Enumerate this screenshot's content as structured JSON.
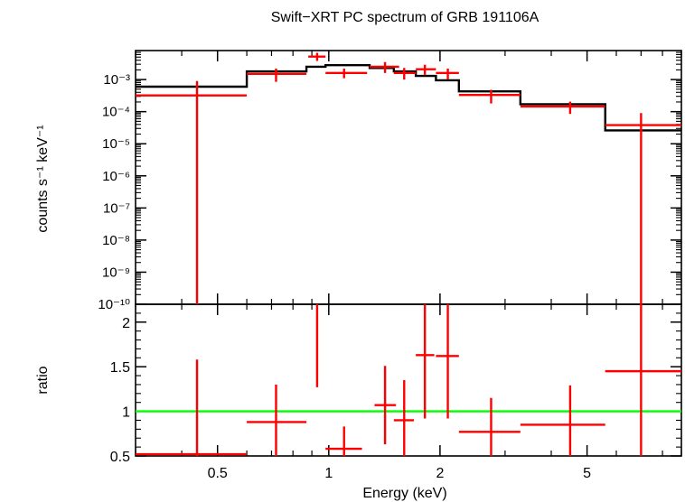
{
  "chart_data": [
    {
      "type": "scatter",
      "title": "Swift−XRT PC spectrum of GRB 191106A",
      "xlabel": "",
      "ylabel": "counts s⁻¹ keV⁻¹",
      "xscale": "log",
      "yscale": "log",
      "xlim": [
        0.3,
        9.0
      ],
      "ylim": [
        1e-10,
        0.008
      ],
      "ytick_labels": [
        "10⁻¹⁰",
        "10⁻⁹",
        "10⁻⁸",
        "10⁻⁷",
        "10⁻⁶",
        "10⁻⁵",
        "10⁻⁴",
        "10⁻³"
      ],
      "ytick_values": [
        1e-10,
        1e-09,
        1e-08,
        1e-07,
        1e-06,
        1e-05,
        0.0001,
        0.001
      ],
      "series": [
        {
          "kind": "data",
          "color": "#ff0000",
          "points": [
            {
              "x": 0.44,
              "xlo": 0.3,
              "xhi": 0.6,
              "y": 0.00032,
              "ylo": 1e-10,
              "yhi": 0.0009
            },
            {
              "x": 0.72,
              "xlo": 0.6,
              "xhi": 0.87,
              "y": 0.0015,
              "ylo": 0.00085,
              "yhi": 0.0022
            },
            {
              "x": 0.93,
              "xlo": 0.88,
              "xhi": 0.98,
              "y": 0.0052,
              "ylo": 0.0038,
              "yhi": 0.0068
            },
            {
              "x": 1.1,
              "xlo": 0.98,
              "xhi": 1.27,
              "y": 0.0016,
              "ylo": 0.0011,
              "yhi": 0.0022
            },
            {
              "x": 1.42,
              "xlo": 1.29,
              "xhi": 1.55,
              "y": 0.0025,
              "ylo": 0.0016,
              "yhi": 0.0035
            },
            {
              "x": 1.6,
              "xlo": 1.5,
              "xhi": 1.72,
              "y": 0.0016,
              "ylo": 0.001,
              "yhi": 0.0023
            },
            {
              "x": 1.82,
              "xlo": 1.72,
              "xhi": 1.95,
              "y": 0.0021,
              "ylo": 0.0014,
              "yhi": 0.0029
            },
            {
              "x": 2.1,
              "xlo": 1.95,
              "xhi": 2.25,
              "y": 0.0016,
              "ylo": 0.001,
              "yhi": 0.0022
            },
            {
              "x": 2.75,
              "xlo": 2.25,
              "xhi": 3.3,
              "y": 0.00033,
              "ylo": 0.00018,
              "yhi": 0.00048
            },
            {
              "x": 4.5,
              "xlo": 3.3,
              "xhi": 5.6,
              "y": 0.000145,
              "ylo": 8.5e-05,
              "yhi": 0.000205
            },
            {
              "x": 7.0,
              "xlo": 5.6,
              "xhi": 9.0,
              "y": 3.8e-05,
              "ylo": 1e-10,
              "yhi": 9e-05
            }
          ]
        },
        {
          "kind": "model",
          "color": "#000000",
          "steps": [
            {
              "xlo": 0.3,
              "xhi": 0.6,
              "y": 0.0006
            },
            {
              "xlo": 0.6,
              "xhi": 0.87,
              "y": 0.0018
            },
            {
              "xlo": 0.87,
              "xhi": 0.98,
              "y": 0.0025
            },
            {
              "xlo": 0.98,
              "xhi": 1.29,
              "y": 0.0028
            },
            {
              "xlo": 1.29,
              "xhi": 1.5,
              "y": 0.0023
            },
            {
              "xlo": 1.5,
              "xhi": 1.72,
              "y": 0.0018
            },
            {
              "xlo": 1.72,
              "xhi": 1.95,
              "y": 0.0013
            },
            {
              "xlo": 1.95,
              "xhi": 2.25,
              "y": 0.00095
            },
            {
              "xlo": 2.25,
              "xhi": 3.3,
              "y": 0.00043
            },
            {
              "xlo": 3.3,
              "xhi": 5.6,
              "y": 0.00017
            },
            {
              "xlo": 5.6,
              "xhi": 9.0,
              "y": 2.6e-05
            }
          ]
        }
      ]
    },
    {
      "type": "scatter",
      "title": "",
      "xlabel": "Energy (keV)",
      "ylabel": "ratio",
      "xscale": "log",
      "yscale": "linear",
      "xlim": [
        0.3,
        9.0
      ],
      "ylim": [
        0.5,
        2.2
      ],
      "xtick_labels": [
        "0.5",
        "1",
        "2",
        "5"
      ],
      "xtick_values": [
        0.5,
        1,
        2,
        5
      ],
      "ytick_labels": [
        "0.5",
        "1",
        "1.5",
        "2"
      ],
      "ytick_values": [
        0.5,
        1,
        1.5,
        2
      ],
      "reference_line": {
        "y": 1,
        "color": "#00ff00"
      },
      "series": [
        {
          "kind": "data",
          "color": "#ff0000",
          "points": [
            {
              "x": 0.44,
              "xlo": 0.3,
              "xhi": 0.6,
              "y": 0.52,
              "ylo": 0.5,
              "yhi": 1.58
            },
            {
              "x": 0.72,
              "xlo": 0.6,
              "xhi": 0.87,
              "y": 0.88,
              "ylo": 0.5,
              "yhi": 1.3
            },
            {
              "x": 0.93,
              "xlo": 0.93,
              "xhi": 0.93,
              "y": 2.12,
              "ylo": 1.27,
              "yhi": 2.2
            },
            {
              "x": 1.1,
              "xlo": 0.98,
              "xhi": 1.23,
              "y": 0.58,
              "ylo": 0.5,
              "yhi": 0.83
            },
            {
              "x": 1.42,
              "xlo": 1.33,
              "xhi": 1.52,
              "y": 1.07,
              "ylo": 0.63,
              "yhi": 1.51
            },
            {
              "x": 1.6,
              "xlo": 1.5,
              "xhi": 1.7,
              "y": 0.9,
              "ylo": 0.5,
              "yhi": 1.35
            },
            {
              "x": 1.82,
              "xlo": 1.72,
              "xhi": 1.93,
              "y": 1.63,
              "ylo": 0.92,
              "yhi": 2.2
            },
            {
              "x": 2.1,
              "xlo": 1.95,
              "xhi": 2.25,
              "y": 1.62,
              "ylo": 0.92,
              "yhi": 2.2
            },
            {
              "x": 2.75,
              "xlo": 2.25,
              "xhi": 3.3,
              "y": 0.77,
              "ylo": 0.5,
              "yhi": 1.15
            },
            {
              "x": 4.5,
              "xlo": 3.3,
              "xhi": 5.6,
              "y": 0.85,
              "ylo": 0.5,
              "yhi": 1.29
            },
            {
              "x": 7.0,
              "xlo": 5.6,
              "xhi": 9.0,
              "y": 1.45,
              "ylo": 0.5,
              "yhi": 2.2
            }
          ]
        }
      ]
    }
  ]
}
